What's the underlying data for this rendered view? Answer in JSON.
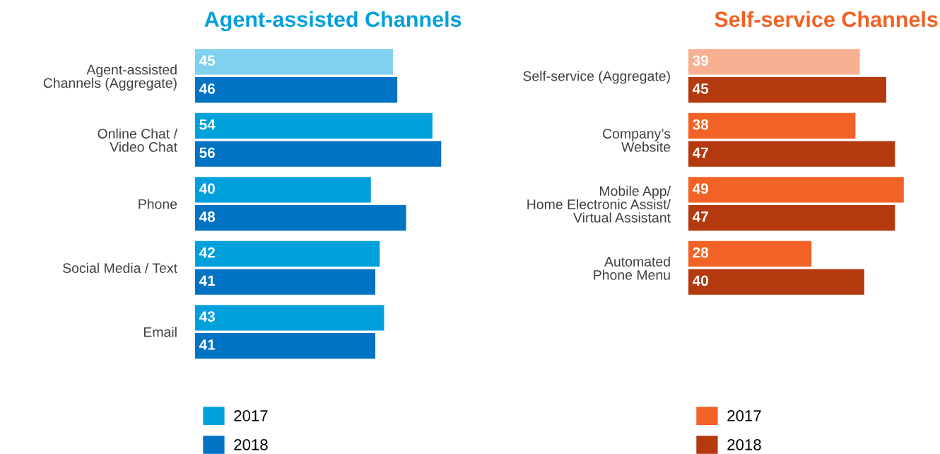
{
  "chart_data": [
    {
      "type": "bar",
      "orientation": "horizontal",
      "title": "Agent-assisted Channels",
      "categories": [
        "Agent-assisted\nChannels (Aggregate)",
        "Online Chat /\nVideo Chat",
        "Phone",
        "Social Media / Text",
        "Email"
      ],
      "series": [
        {
          "name": "2017",
          "color": "#00a0dc",
          "colors": [
            "#80d0ef",
            "#00a0dc",
            "#00a0dc",
            "#00a0dc",
            "#00a0dc"
          ],
          "values": [
            45,
            54,
            40,
            42,
            43
          ]
        },
        {
          "name": "2018",
          "color": "#0073c4",
          "values": [
            46,
            56,
            48,
            41,
            41
          ]
        }
      ],
      "data_labels": true,
      "legend": "bottom left",
      "tick_labels": "y"
    },
    {
      "type": "bar",
      "orientation": "horizontal",
      "title": "Self-service Channels",
      "categories": [
        "Self-service (Aggregate)",
        "Company’s\nWebsite",
        "Mobile App/\nHome Electronic Assist/\nVirtual Assistant",
        "Automated\nPhone Menu"
      ],
      "series": [
        {
          "name": "2017",
          "color": "#f26125",
          "colors": [
            "#f8b093",
            "#f26125",
            "#f26125",
            "#f26125"
          ],
          "values": [
            39,
            38,
            49,
            28
          ]
        },
        {
          "name": "2018",
          "color": "#b5390e",
          "values": [
            45,
            47,
            47,
            40
          ]
        }
      ],
      "data_labels": true,
      "legend": "bottom left",
      "tick_labels": "y"
    }
  ]
}
